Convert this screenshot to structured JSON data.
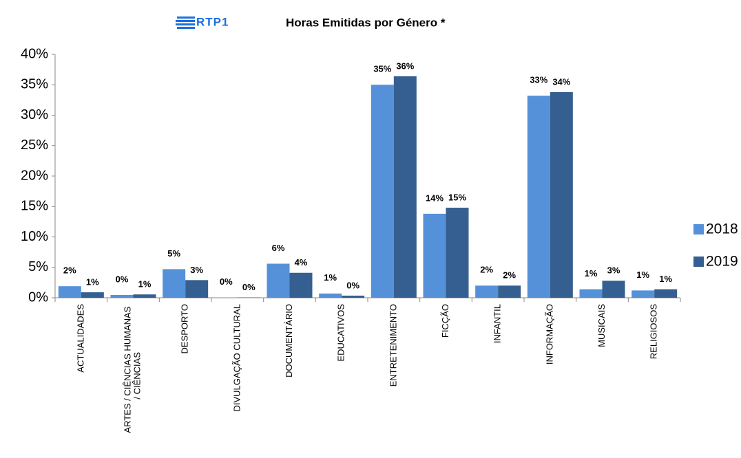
{
  "chart_data": {
    "type": "bar",
    "logo": "RTP1",
    "title": "Horas Emitidas por Género *",
    "categories": [
      "ACTUALIDADES",
      "ARTES / CIÊNCIAS HUMANAS / CIÊNCIAS",
      "DESPORTO",
      "DIVULGAÇÃO CULTURAL",
      "DOCUMENTÁRIO",
      "EDUCATIVOS",
      "ENTRETENIMENTO",
      "FICÇÃO",
      "INFANTIL",
      "INFORMAÇÃO",
      "MUSICAIS",
      "RELIGIOSOS"
    ],
    "series": [
      {
        "name": "2018",
        "color": "#5591d9",
        "values": [
          1.9,
          0.45,
          4.7,
          0.05,
          5.6,
          0.7,
          35.0,
          13.8,
          2.0,
          33.2,
          1.4,
          1.2
        ],
        "value_labels": [
          "2%",
          "0%",
          "5%",
          "0%",
          "6%",
          "1%",
          "35%",
          "14%",
          "2%",
          "33%",
          "1%",
          "1%"
        ]
      },
      {
        "name": "2019",
        "color": "#355f90",
        "values": [
          0.9,
          0.55,
          2.9,
          0.05,
          4.1,
          0.35,
          36.4,
          14.8,
          2.0,
          33.8,
          2.8,
          1.4
        ],
        "value_labels": [
          "1%",
          "1%",
          "3%",
          "0%",
          "4%",
          "0%",
          "36%",
          "15%",
          "2%",
          "34%",
          "3%",
          "1%"
        ]
      }
    ],
    "ylim": [
      0,
      40
    ],
    "yticks": [
      {
        "value": 0,
        "label": "0%"
      },
      {
        "value": 5,
        "label": "5%"
      },
      {
        "value": 10,
        "label": "10%"
      },
      {
        "value": 15,
        "label": "15%"
      },
      {
        "value": 20,
        "label": "20%"
      },
      {
        "value": 25,
        "label": "25%"
      },
      {
        "value": 30,
        "label": "30%"
      },
      {
        "value": 35,
        "label": "35%"
      },
      {
        "value": 40,
        "label": "40%"
      }
    ],
    "legend": "right"
  }
}
